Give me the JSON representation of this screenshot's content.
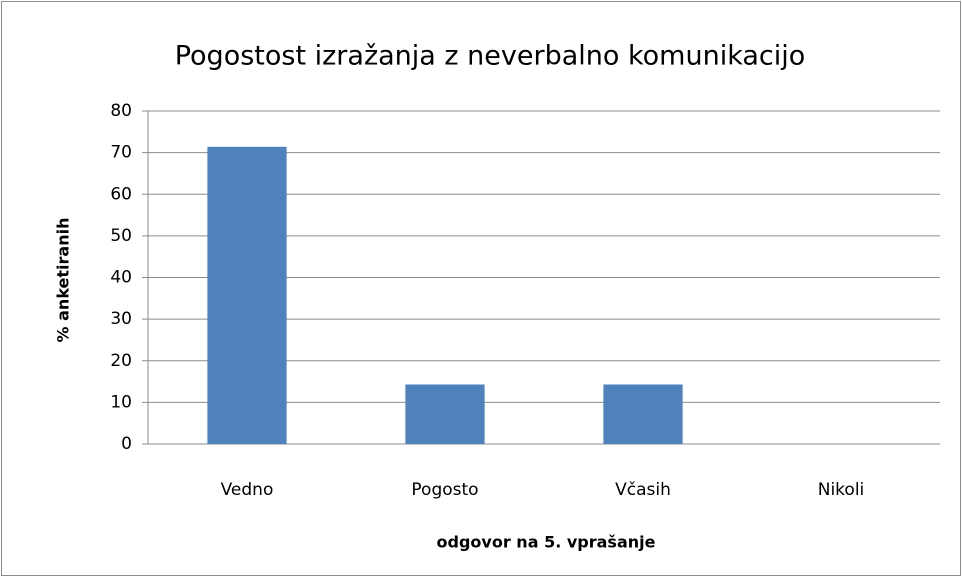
{
  "chart_data": {
    "type": "bar",
    "title": "Pogostost izražanja z neverbalno komunikacijo",
    "x_label": "odgovor na 5. vprašanje",
    "y_label": "% anketiranih",
    "categories": [
      "Vedno",
      "Pogosto",
      "Včasih",
      "Nikoli"
    ],
    "values": [
      71.4,
      14.3,
      14.3,
      0
    ],
    "color": "#4f81bd",
    "ylim": [
      0,
      80
    ],
    "yticks": [
      0,
      10,
      20,
      30,
      40,
      50,
      60,
      70,
      80
    ],
    "grid": true
  }
}
